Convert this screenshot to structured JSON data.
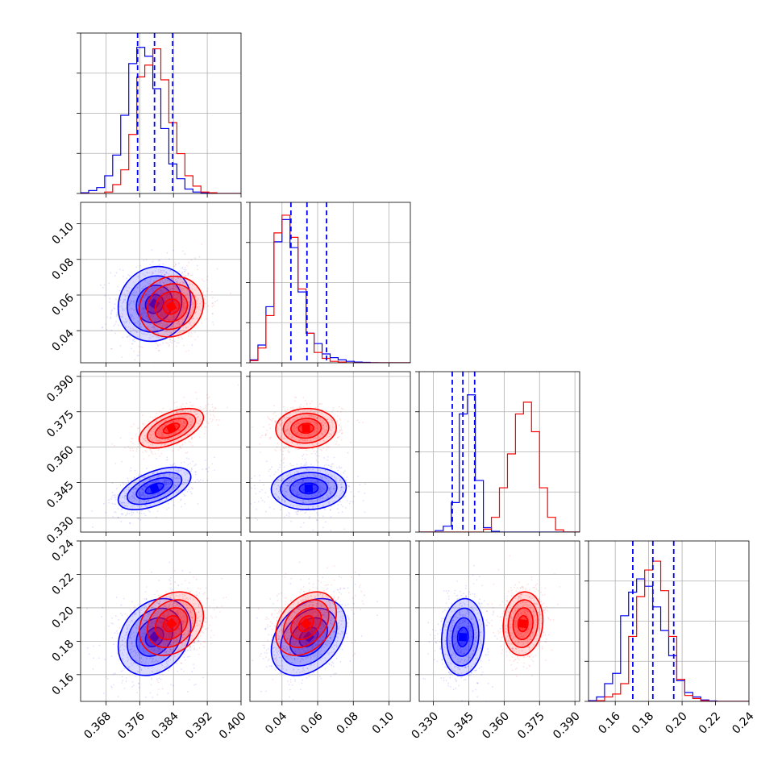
{
  "chart_data": {
    "type": "corner",
    "title": "",
    "parameters": [
      {
        "index": 0,
        "range": [
          0.362,
          0.4
        ],
        "ticks": [
          "0.368",
          "0.376",
          "0.384",
          "0.392",
          "0.400"
        ]
      },
      {
        "index": 1,
        "range": [
          0.022,
          0.112
        ],
        "ticks": [
          "0.04",
          "0.06",
          "0.08",
          "0.10"
        ]
      },
      {
        "index": 2,
        "range": [
          0.324,
          0.392
        ],
        "ticks": [
          "0.330",
          "0.345",
          "0.360",
          "0.375",
          "0.390"
        ]
      },
      {
        "index": 3,
        "range": [
          0.144,
          0.24
        ],
        "ticks": [
          "0.16",
          "0.18",
          "0.20",
          "0.22",
          "0.24"
        ]
      }
    ],
    "series": [
      {
        "color": "#0000ff",
        "means": [
          0.3795,
          0.055,
          0.3425,
          0.1825
        ],
        "stds": [
          0.0043,
          0.0105,
          0.0045,
          0.0115
        ]
      },
      {
        "color": "#ff0000",
        "means": [
          0.3835,
          0.0535,
          0.368,
          0.1905
        ],
        "stds": [
          0.0038,
          0.0085,
          0.0042,
          0.0095
        ]
      }
    ],
    "correlations": {
      "0-1": 0.1,
      "0-2": 0.55,
      "0-3": 0.25,
      "1-2": 0.05,
      "1-3": 0.35,
      "2-3": 0.1
    },
    "quantiles": {
      "color": "#0000ff",
      "values": [
        [
          0.3755,
          0.3795,
          0.3838
        ],
        [
          0.045,
          0.054,
          0.065
        ],
        [
          0.338,
          0.3425,
          0.3475
        ],
        [
          0.1705,
          0.1825,
          0.195
        ]
      ]
    },
    "histogram_levels": {
      "series_0": [
        [
          0.005,
          0.02,
          0.04,
          0.12,
          0.26,
          0.53,
          0.88,
          0.99,
          0.93,
          0.71,
          0.44,
          0.2,
          0.1,
          0.03,
          0.01,
          0.004,
          0.001,
          0,
          0,
          0
        ],
        [
          0.02,
          0.12,
          0.38,
          0.82,
          0.97,
          0.78,
          0.48,
          0.2,
          0.13,
          0.06,
          0.035,
          0.02,
          0.01,
          0.005,
          0.003,
          0.001,
          0,
          0,
          0,
          0
        ],
        [
          0,
          0,
          0.01,
          0.04,
          0.2,
          0.8,
          0.93,
          0.35,
          0.03,
          0.005,
          0,
          0,
          0,
          0,
          0,
          0,
          0,
          0,
          0,
          0
        ],
        [
          0.005,
          0.03,
          0.12,
          0.19,
          0.58,
          0.74,
          0.83,
          0.78,
          0.64,
          0.48,
          0.31,
          0.14,
          0.06,
          0.03,
          0.01,
          0.003,
          0,
          0,
          0,
          0
        ]
      ],
      "series_1": [
        [
          0,
          0,
          0,
          0.01,
          0.06,
          0.16,
          0.4,
          0.79,
          0.87,
          0.98,
          0.77,
          0.48,
          0.27,
          0.12,
          0.05,
          0.01,
          0.005,
          0,
          0,
          0
        ],
        [
          0.015,
          0.1,
          0.32,
          0.88,
          1.0,
          0.85,
          0.5,
          0.2,
          0.07,
          0.03,
          0.01,
          0.005,
          0,
          0,
          0,
          0,
          0,
          0,
          0,
          0
        ],
        [
          0,
          0,
          0,
          0,
          0,
          0,
          0,
          0,
          0.02,
          0.1,
          0.3,
          0.53,
          0.8,
          0.88,
          0.68,
          0.3,
          0.1,
          0.015,
          0,
          0
        ],
        [
          0,
          0.005,
          0.03,
          0.05,
          0.12,
          0.44,
          0.71,
          0.89,
          0.95,
          0.75,
          0.44,
          0.15,
          0.04,
          0.02,
          0.005,
          0,
          0,
          0,
          0,
          0
        ]
      ]
    },
    "grid": true,
    "axis_labels": []
  }
}
